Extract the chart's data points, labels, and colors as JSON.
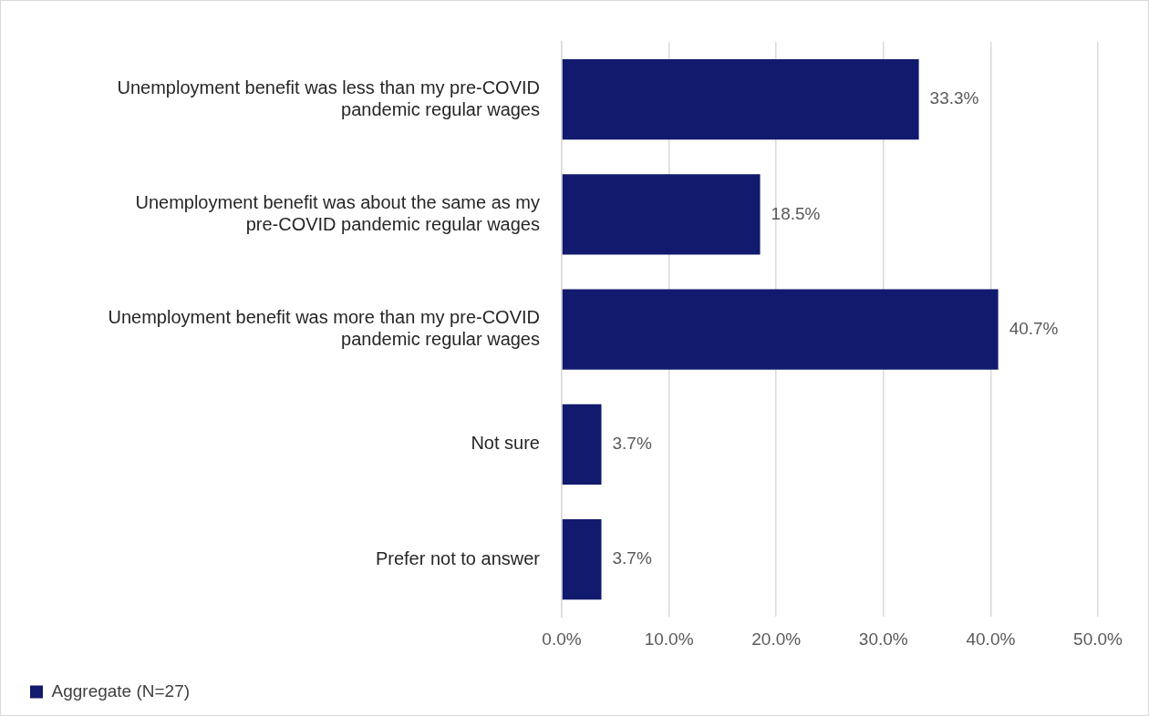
{
  "chart_data": {
    "type": "bar",
    "orientation": "horizontal",
    "categories": [
      "Unemployment benefit was less than my pre-COVID pandemic regular wages",
      "Unemployment benefit was about the same as my pre-COVID pandemic regular wages",
      "Unemployment benefit was more than my pre-COVID pandemic regular wages",
      "Not sure",
      "Prefer not to answer"
    ],
    "series": [
      {
        "name": "Aggregate (N=27)",
        "color": "#121a6e",
        "values": [
          33.3,
          18.5,
          40.7,
          3.7,
          3.7
        ],
        "value_labels": [
          "33.3%",
          "18.5%",
          "40.7%",
          "3.7%",
          "3.7%"
        ]
      }
    ],
    "xlim": [
      0,
      50
    ],
    "xticks": [
      {
        "value": 0,
        "label": "0.0%"
      },
      {
        "value": 10,
        "label": "10.0%"
      },
      {
        "value": 20,
        "label": "20.0%"
      },
      {
        "value": 30,
        "label": "30.0%"
      },
      {
        "value": 40,
        "label": "40.0%"
      },
      {
        "value": 50,
        "label": "50.0%"
      }
    ],
    "grid": "x",
    "legend": "bottom left"
  }
}
